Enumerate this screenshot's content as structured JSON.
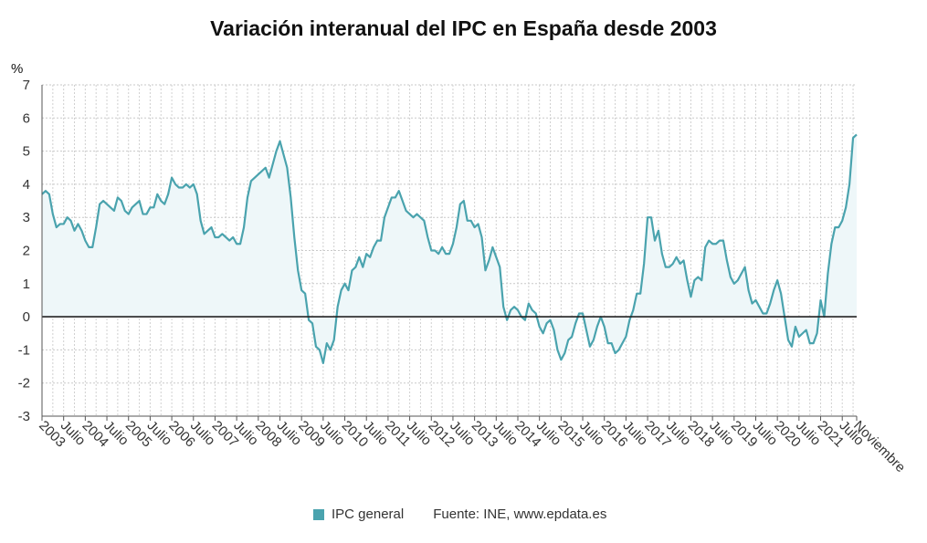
{
  "chart_data": {
    "type": "area",
    "title": "Variación interanual del IPC en España desde 2003",
    "ylabel": "%",
    "xlabel": "",
    "ylim": [
      -3,
      7
    ],
    "yticks": [
      -3,
      -2,
      -1,
      0,
      1,
      2,
      3,
      4,
      5,
      6,
      7
    ],
    "grid": true,
    "x_start": "2003-01",
    "x_end": "2021-11",
    "x_tick_labels": [
      {
        "date": "2003-01",
        "label": "2003"
      },
      {
        "date": "2003-07",
        "label": "Julio"
      },
      {
        "date": "2004-01",
        "label": "2004"
      },
      {
        "date": "2004-07",
        "label": "Julio"
      },
      {
        "date": "2005-01",
        "label": "2005"
      },
      {
        "date": "2005-07",
        "label": "Julio"
      },
      {
        "date": "2006-01",
        "label": "2006"
      },
      {
        "date": "2006-07",
        "label": "Julio"
      },
      {
        "date": "2007-01",
        "label": "2007"
      },
      {
        "date": "2007-07",
        "label": "Julio"
      },
      {
        "date": "2008-01",
        "label": "2008"
      },
      {
        "date": "2008-07",
        "label": "Julio"
      },
      {
        "date": "2009-01",
        "label": "2009"
      },
      {
        "date": "2009-07",
        "label": "Julio"
      },
      {
        "date": "2010-01",
        "label": "2010"
      },
      {
        "date": "2010-07",
        "label": "Julio"
      },
      {
        "date": "2011-01",
        "label": "2011"
      },
      {
        "date": "2011-07",
        "label": "Julio"
      },
      {
        "date": "2012-01",
        "label": "2012"
      },
      {
        "date": "2012-07",
        "label": "Julio"
      },
      {
        "date": "2013-01",
        "label": "2013"
      },
      {
        "date": "2013-07",
        "label": "Julio"
      },
      {
        "date": "2014-01",
        "label": "2014"
      },
      {
        "date": "2014-07",
        "label": "Julio"
      },
      {
        "date": "2015-01",
        "label": "2015"
      },
      {
        "date": "2015-07",
        "label": "Julio"
      },
      {
        "date": "2016-01",
        "label": "2016"
      },
      {
        "date": "2016-07",
        "label": "Julio"
      },
      {
        "date": "2017-01",
        "label": "2017"
      },
      {
        "date": "2017-07",
        "label": "Julio"
      },
      {
        "date": "2018-01",
        "label": "2018"
      },
      {
        "date": "2018-07",
        "label": "Julio"
      },
      {
        "date": "2019-01",
        "label": "2019"
      },
      {
        "date": "2019-07",
        "label": "Julio"
      },
      {
        "date": "2020-01",
        "label": "2020"
      },
      {
        "date": "2020-07",
        "label": "Julio"
      },
      {
        "date": "2021-01",
        "label": "2021"
      },
      {
        "date": "2021-07",
        "label": "Julio"
      },
      {
        "date": "2021-11",
        "label": "Noviembre"
      }
    ],
    "series": [
      {
        "name": "IPC general",
        "color": "#4aa3ae",
        "fill_color": "#eef7f9",
        "points": [
          [
            "2003-01",
            3.7
          ],
          [
            "2003-02",
            3.8
          ],
          [
            "2003-03",
            3.7
          ],
          [
            "2003-04",
            3.1
          ],
          [
            "2003-05",
            2.7
          ],
          [
            "2003-06",
            2.8
          ],
          [
            "2003-07",
            2.8
          ],
          [
            "2003-08",
            3.0
          ],
          [
            "2003-09",
            2.9
          ],
          [
            "2003-10",
            2.6
          ],
          [
            "2003-11",
            2.8
          ],
          [
            "2003-12",
            2.6
          ],
          [
            "2004-01",
            2.3
          ],
          [
            "2004-02",
            2.1
          ],
          [
            "2004-03",
            2.1
          ],
          [
            "2004-04",
            2.7
          ],
          [
            "2004-05",
            3.4
          ],
          [
            "2004-06",
            3.5
          ],
          [
            "2004-07",
            3.4
          ],
          [
            "2004-08",
            3.3
          ],
          [
            "2004-09",
            3.2
          ],
          [
            "2004-10",
            3.6
          ],
          [
            "2004-11",
            3.5
          ],
          [
            "2004-12",
            3.2
          ],
          [
            "2005-01",
            3.1
          ],
          [
            "2005-02",
            3.3
          ],
          [
            "2005-03",
            3.4
          ],
          [
            "2005-04",
            3.5
          ],
          [
            "2005-05",
            3.1
          ],
          [
            "2005-06",
            3.1
          ],
          [
            "2005-07",
            3.3
          ],
          [
            "2005-08",
            3.3
          ],
          [
            "2005-09",
            3.7
          ],
          [
            "2005-10",
            3.5
          ],
          [
            "2005-11",
            3.4
          ],
          [
            "2005-12",
            3.7
          ],
          [
            "2006-01",
            4.2
          ],
          [
            "2006-02",
            4.0
          ],
          [
            "2006-03",
            3.9
          ],
          [
            "2006-04",
            3.9
          ],
          [
            "2006-05",
            4.0
          ],
          [
            "2006-06",
            3.9
          ],
          [
            "2006-07",
            4.0
          ],
          [
            "2006-08",
            3.7
          ],
          [
            "2006-09",
            2.9
          ],
          [
            "2006-10",
            2.5
          ],
          [
            "2006-11",
            2.6
          ],
          [
            "2006-12",
            2.7
          ],
          [
            "2007-01",
            2.4
          ],
          [
            "2007-02",
            2.4
          ],
          [
            "2007-03",
            2.5
          ],
          [
            "2007-04",
            2.4
          ],
          [
            "2007-05",
            2.3
          ],
          [
            "2007-06",
            2.4
          ],
          [
            "2007-07",
            2.2
          ],
          [
            "2007-08",
            2.2
          ],
          [
            "2007-09",
            2.7
          ],
          [
            "2007-10",
            3.6
          ],
          [
            "2007-11",
            4.1
          ],
          [
            "2007-12",
            4.2
          ],
          [
            "2008-01",
            4.3
          ],
          [
            "2008-02",
            4.4
          ],
          [
            "2008-03",
            4.5
          ],
          [
            "2008-04",
            4.2
          ],
          [
            "2008-05",
            4.6
          ],
          [
            "2008-06",
            5.0
          ],
          [
            "2008-07",
            5.3
          ],
          [
            "2008-08",
            4.9
          ],
          [
            "2008-09",
            4.5
          ],
          [
            "2008-10",
            3.6
          ],
          [
            "2008-11",
            2.4
          ],
          [
            "2008-12",
            1.4
          ],
          [
            "2009-01",
            0.8
          ],
          [
            "2009-02",
            0.7
          ],
          [
            "2009-03",
            -0.1
          ],
          [
            "2009-04",
            -0.2
          ],
          [
            "2009-05",
            -0.9
          ],
          [
            "2009-06",
            -1.0
          ],
          [
            "2009-07",
            -1.4
          ],
          [
            "2009-08",
            -0.8
          ],
          [
            "2009-09",
            -1.0
          ],
          [
            "2009-10",
            -0.7
          ],
          [
            "2009-11",
            0.3
          ],
          [
            "2009-12",
            0.8
          ],
          [
            "2010-01",
            1.0
          ],
          [
            "2010-02",
            0.8
          ],
          [
            "2010-03",
            1.4
          ],
          [
            "2010-04",
            1.5
          ],
          [
            "2010-05",
            1.8
          ],
          [
            "2010-06",
            1.5
          ],
          [
            "2010-07",
            1.9
          ],
          [
            "2010-08",
            1.8
          ],
          [
            "2010-09",
            2.1
          ],
          [
            "2010-10",
            2.3
          ],
          [
            "2010-11",
            2.3
          ],
          [
            "2010-12",
            3.0
          ],
          [
            "2011-01",
            3.3
          ],
          [
            "2011-02",
            3.6
          ],
          [
            "2011-03",
            3.6
          ],
          [
            "2011-04",
            3.8
          ],
          [
            "2011-05",
            3.5
          ],
          [
            "2011-06",
            3.2
          ],
          [
            "2011-07",
            3.1
          ],
          [
            "2011-08",
            3.0
          ],
          [
            "2011-09",
            3.1
          ],
          [
            "2011-10",
            3.0
          ],
          [
            "2011-11",
            2.9
          ],
          [
            "2011-12",
            2.4
          ],
          [
            "2012-01",
            2.0
          ],
          [
            "2012-02",
            2.0
          ],
          [
            "2012-03",
            1.9
          ],
          [
            "2012-04",
            2.1
          ],
          [
            "2012-05",
            1.9
          ],
          [
            "2012-06",
            1.9
          ],
          [
            "2012-07",
            2.2
          ],
          [
            "2012-08",
            2.7
          ],
          [
            "2012-09",
            3.4
          ],
          [
            "2012-10",
            3.5
          ],
          [
            "2012-11",
            2.9
          ],
          [
            "2012-12",
            2.9
          ],
          [
            "2013-01",
            2.7
          ],
          [
            "2013-02",
            2.8
          ],
          [
            "2013-03",
            2.4
          ],
          [
            "2013-04",
            1.4
          ],
          [
            "2013-05",
            1.7
          ],
          [
            "2013-06",
            2.1
          ],
          [
            "2013-07",
            1.8
          ],
          [
            "2013-08",
            1.5
          ],
          [
            "2013-09",
            0.3
          ],
          [
            "2013-10",
            -0.1
          ],
          [
            "2013-11",
            0.2
          ],
          [
            "2013-12",
            0.3
          ],
          [
            "2014-01",
            0.2
          ],
          [
            "2014-02",
            0.0
          ],
          [
            "2014-03",
            -0.1
          ],
          [
            "2014-04",
            0.4
          ],
          [
            "2014-05",
            0.2
          ],
          [
            "2014-06",
            0.1
          ],
          [
            "2014-07",
            -0.3
          ],
          [
            "2014-08",
            -0.5
          ],
          [
            "2014-09",
            -0.2
          ],
          [
            "2014-10",
            -0.1
          ],
          [
            "2014-11",
            -0.4
          ],
          [
            "2014-12",
            -1.0
          ],
          [
            "2015-01",
            -1.3
          ],
          [
            "2015-02",
            -1.1
          ],
          [
            "2015-03",
            -0.7
          ],
          [
            "2015-04",
            -0.6
          ],
          [
            "2015-05",
            -0.2
          ],
          [
            "2015-06",
            0.1
          ],
          [
            "2015-07",
            0.1
          ],
          [
            "2015-08",
            -0.4
          ],
          [
            "2015-09",
            -0.9
          ],
          [
            "2015-10",
            -0.7
          ],
          [
            "2015-11",
            -0.3
          ],
          [
            "2015-12",
            0.0
          ],
          [
            "2016-01",
            -0.3
          ],
          [
            "2016-02",
            -0.8
          ],
          [
            "2016-03",
            -0.8
          ],
          [
            "2016-04",
            -1.1
          ],
          [
            "2016-05",
            -1.0
          ],
          [
            "2016-06",
            -0.8
          ],
          [
            "2016-07",
            -0.6
          ],
          [
            "2016-08",
            -0.1
          ],
          [
            "2016-09",
            0.2
          ],
          [
            "2016-10",
            0.7
          ],
          [
            "2016-11",
            0.7
          ],
          [
            "2016-12",
            1.6
          ],
          [
            "2017-01",
            3.0
          ],
          [
            "2017-02",
            3.0
          ],
          [
            "2017-03",
            2.3
          ],
          [
            "2017-04",
            2.6
          ],
          [
            "2017-05",
            1.9
          ],
          [
            "2017-06",
            1.5
          ],
          [
            "2017-07",
            1.5
          ],
          [
            "2017-08",
            1.6
          ],
          [
            "2017-09",
            1.8
          ],
          [
            "2017-10",
            1.6
          ],
          [
            "2017-11",
            1.7
          ],
          [
            "2017-12",
            1.1
          ],
          [
            "2018-01",
            0.6
          ],
          [
            "2018-02",
            1.1
          ],
          [
            "2018-03",
            1.2
          ],
          [
            "2018-04",
            1.1
          ],
          [
            "2018-05",
            2.1
          ],
          [
            "2018-06",
            2.3
          ],
          [
            "2018-07",
            2.2
          ],
          [
            "2018-08",
            2.2
          ],
          [
            "2018-09",
            2.3
          ],
          [
            "2018-10",
            2.3
          ],
          [
            "2018-11",
            1.7
          ],
          [
            "2018-12",
            1.2
          ],
          [
            "2019-01",
            1.0
          ],
          [
            "2019-02",
            1.1
          ],
          [
            "2019-03",
            1.3
          ],
          [
            "2019-04",
            1.5
          ],
          [
            "2019-05",
            0.8
          ],
          [
            "2019-06",
            0.4
          ],
          [
            "2019-07",
            0.5
          ],
          [
            "2019-08",
            0.3
          ],
          [
            "2019-09",
            0.1
          ],
          [
            "2019-10",
            0.1
          ],
          [
            "2019-11",
            0.4
          ],
          [
            "2019-12",
            0.8
          ],
          [
            "2020-01",
            1.1
          ],
          [
            "2020-02",
            0.7
          ],
          [
            "2020-03",
            0.0
          ],
          [
            "2020-04",
            -0.7
          ],
          [
            "2020-05",
            -0.9
          ],
          [
            "2020-06",
            -0.3
          ],
          [
            "2020-07",
            -0.6
          ],
          [
            "2020-08",
            -0.5
          ],
          [
            "2020-09",
            -0.4
          ],
          [
            "2020-10",
            -0.8
          ],
          [
            "2020-11",
            -0.8
          ],
          [
            "2020-12",
            -0.5
          ],
          [
            "2021-01",
            0.5
          ],
          [
            "2021-02",
            0.0
          ],
          [
            "2021-03",
            1.3
          ],
          [
            "2021-04",
            2.2
          ],
          [
            "2021-05",
            2.7
          ],
          [
            "2021-06",
            2.7
          ],
          [
            "2021-07",
            2.9
          ],
          [
            "2021-08",
            3.3
          ],
          [
            "2021-09",
            4.0
          ],
          [
            "2021-10",
            5.4
          ],
          [
            "2021-11",
            5.5
          ]
        ]
      }
    ]
  },
  "legend": {
    "series_label": "IPC general",
    "swatch_color": "#4aa3ae"
  },
  "source": "Fuente: INE, www.epdata.es"
}
